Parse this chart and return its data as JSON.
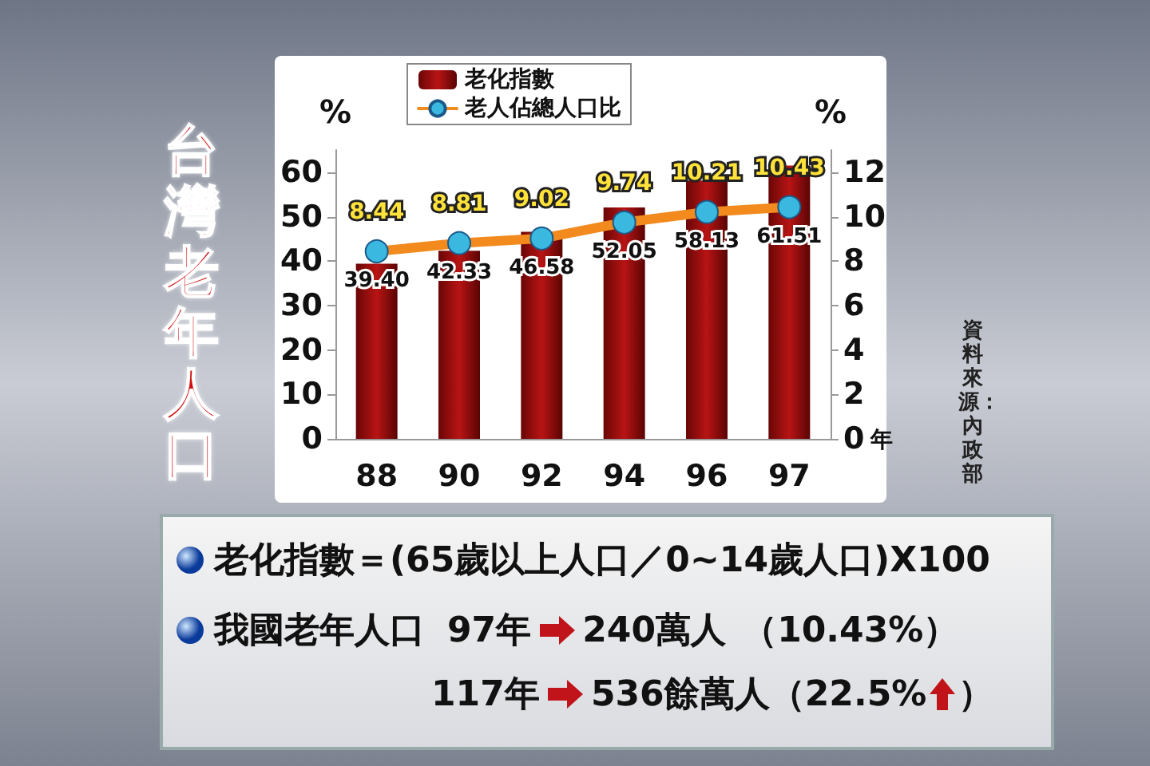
{
  "chart_data": {
    "type": "bar",
    "title": "台灣老年人口",
    "categories": [
      "88",
      "90",
      "92",
      "94",
      "96",
      "97"
    ],
    "series": [
      {
        "name": "老化指數",
        "color": "#b81414",
        "values": [
          39.4,
          42.33,
          46.58,
          52.05,
          58.13,
          61.51
        ],
        "value_labels": [
          "39.40",
          "42.33",
          "46.58",
          "52.05",
          "58.13",
          "61.51"
        ]
      },
      {
        "name": "老人佔總人口比",
        "type": "line",
        "axis": "y2",
        "color": "#f28a1e",
        "values": [
          8.44,
          8.81,
          9.02,
          9.74,
          10.21,
          10.43
        ],
        "value_labels": [
          "8.44",
          "8.81",
          "9.02",
          "9.74",
          "10.21",
          "10.43"
        ]
      }
    ],
    "ylabel": "%",
    "y2label": "%",
    "xlabel": "年",
    "ylim": [
      0,
      65
    ],
    "yticks": [
      0,
      10,
      20,
      30,
      40,
      50,
      60
    ],
    "y2lim": [
      0,
      13
    ],
    "y2ticks": [
      0,
      2,
      4,
      6,
      8,
      10,
      12
    ],
    "marker": "circle",
    "grid": false,
    "legend": "top left",
    "annotations": [
      "資料來源：內政部",
      "老化指數＝(65歲以上人口／0~14歲人口)X100",
      "我國老年人口",
      "97年",
      "240萬人",
      "（10.43%）",
      "117年",
      "536餘萬人",
      "（22.5%",
      "）"
    ]
  }
}
